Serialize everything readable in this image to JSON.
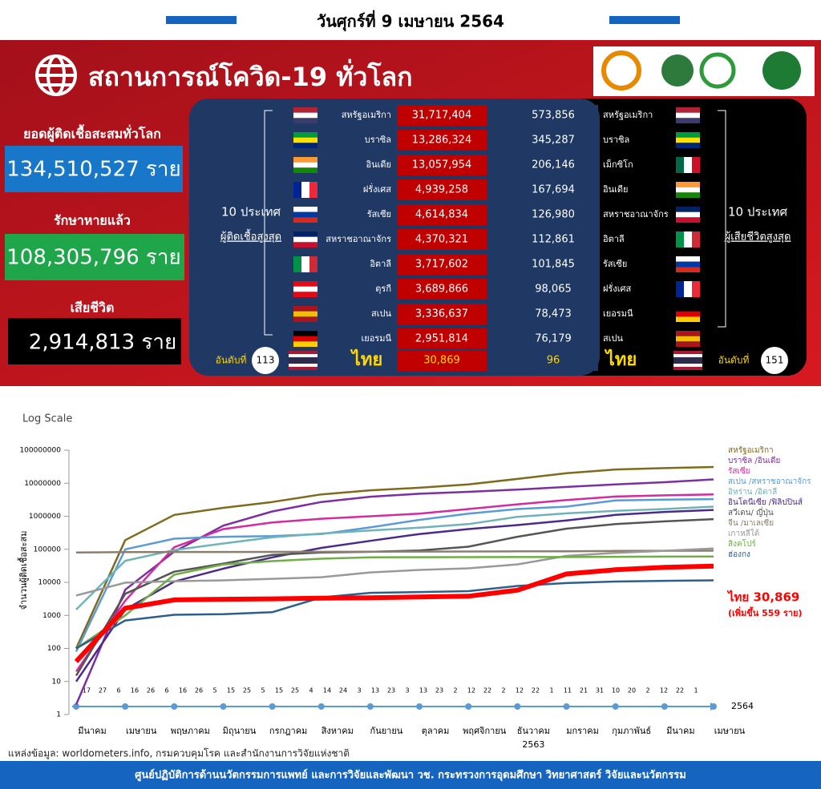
{
  "header": {
    "date": "วันศุกร์ที่ 9 เมษายน 2564"
  },
  "title": "สถานการณ์โควิด-19 ทั่วโลก",
  "stats": [
    {
      "label": "ยอดผู้ติดเชื้อสะสมทั่วโลก",
      "value": "134,510,527 ราย"
    },
    {
      "label": "รักษาหายแล้ว",
      "value": "108,305,796 ราย"
    },
    {
      "label": "เสียชีวิต",
      "value": "2,914,813 ราย"
    }
  ],
  "cases_top10": {
    "heading": "10 ประเทศ",
    "subheading": "ผู้ติดเชื้อสูงสุด",
    "rows": [
      {
        "country": "สหรัฐอเมริกา",
        "value": "31,717,404"
      },
      {
        "country": "บราซิล",
        "value": "13,286,324"
      },
      {
        "country": "อินเดีย",
        "value": "13,057,954"
      },
      {
        "country": "ฝรั่งเศส",
        "value": "4,939,258"
      },
      {
        "country": "รัสเซีย",
        "value": "4,614,834"
      },
      {
        "country": "สหราชอาณาจักร",
        "value": "4,370,321"
      },
      {
        "country": "อิตาลี",
        "value": "3,717,602"
      },
      {
        "country": "ตุรกี",
        "value": "3,689,866"
      },
      {
        "country": "สเปน",
        "value": "3,336,637"
      },
      {
        "country": "เยอรมนี",
        "value": "2,951,814"
      }
    ],
    "thailand": {
      "rank_label": "อันดับที่",
      "rank": 113,
      "country": "ไทย",
      "value": "30,869"
    }
  },
  "deaths_top10": {
    "heading": "10 ประเทศ",
    "subheading": "ผู้เสียชีวิตสูงสุด",
    "rows": [
      {
        "country": "สหรัฐอเมริกา",
        "value": "573,856"
      },
      {
        "country": "บราซิล",
        "value": "345,287"
      },
      {
        "country": "เม็กซิโก",
        "value": "206,146"
      },
      {
        "country": "อินเดีย",
        "value": "167,694"
      },
      {
        "country": "สหราชอาณาจักร",
        "value": "126,980"
      },
      {
        "country": "อิตาลี",
        "value": "112,861"
      },
      {
        "country": "รัสเซีย",
        "value": "101,845"
      },
      {
        "country": "ฝรั่งเศส",
        "value": "98,065"
      },
      {
        "country": "เยอรมนี",
        "value": "78,473"
      },
      {
        "country": "สเปน",
        "value": "76,179"
      }
    ],
    "thailand": {
      "rank_label": "อันดับที่",
      "rank": 151,
      "country": "ไทย",
      "value": "96"
    }
  },
  "chart_data": {
    "type": "line",
    "subtitle": "Log Scale",
    "y_label": "จำนวนผู้ติดเชื้อสะสม",
    "log_scale": true,
    "categories": [
      "มีนาคม",
      "เมษายน",
      "พฤษภาคม",
      "มิถุนายน",
      "กรกฎาคม",
      "สิงหาคม",
      "กันยายน",
      "ตุลาคม",
      "พฤศจิกายน",
      "ธันวาคม",
      "มกราคม",
      "กุมภาพันธ์",
      "มีนาคม",
      "เมษายน"
    ],
    "x_day_labels": [
      "17",
      "27",
      "6",
      "16",
      "26",
      "6",
      "16",
      "26",
      "5",
      "15",
      "25",
      "5",
      "15",
      "25",
      "4",
      "14",
      "24",
      "3",
      "13",
      "23",
      "3",
      "13",
      "23",
      "2",
      "12",
      "22",
      "2",
      "12",
      "22",
      "1",
      "11",
      "21",
      "31",
      "10",
      "20",
      "2",
      "12",
      "22",
      "1"
    ],
    "year_labels": [
      "2563",
      "2564"
    ],
    "ylim": [
      1,
      100000000
    ],
    "yticks": [
      1,
      10,
      100,
      1000,
      10000,
      100000,
      1000000,
      10000000,
      100000000
    ],
    "series": [
      {
        "name": "สหรัฐอเมริกา",
        "color": "#7f6a1e",
        "values": [
          100,
          190000,
          1100000,
          1800000,
          2700000,
          4600000,
          6100000,
          7300000,
          9200000,
          13500000,
          20000000,
          26000000,
          28700000,
          31000000
        ]
      },
      {
        "name": "บราซิล /อินเดีย",
        "color": "#7b2fa0",
        "values": [
          2,
          6000,
          85000,
          520000,
          1400000,
          2700000,
          3900000,
          4800000,
          5500000,
          6400000,
          7700000,
          9200000,
          10700000,
          13000000
        ]
      },
      {
        "name": "รัสเซีย",
        "color": "#d22ca0",
        "values": [
          20,
          2800,
          115000,
          410000,
          650000,
          840000,
          1000000,
          1200000,
          1650000,
          2300000,
          3100000,
          3950000,
          4300000,
          4600000
        ]
      },
      {
        "name": "สเปน /สหราชอาณาจักร",
        "color": "#5b9bd5",
        "values": [
          80,
          100000,
          210000,
          240000,
          250000,
          290000,
          460000,
          780000,
          1200000,
          1650000,
          1950000,
          3000000,
          3200000,
          3300000
        ]
      },
      {
        "name": "อิหร่าน /อิตาลี",
        "color": "#6fb3b8",
        "values": [
          1500,
          45000,
          95000,
          150000,
          230000,
          300000,
          370000,
          450000,
          580000,
          960000,
          1220000,
          1450000,
          1650000,
          1950000
        ]
      },
      {
        "name": "อินโดนีเซีย /ฟิลิปปินส์",
        "color": "#4b2a8a",
        "values": [
          10,
          1500,
          10500,
          26000,
          57000,
          110000,
          180000,
          290000,
          410000,
          540000,
          750000,
          1100000,
          1350000,
          1550000
        ]
      },
      {
        "name": "สวีเดน/ ญี่ปุ่น",
        "color": "#555555",
        "values": [
          15,
          4500,
          21000,
          37000,
          68000,
          80000,
          84000,
          92000,
          120000,
          240000,
          420000,
          580000,
          700000,
          820000
        ]
      },
      {
        "name": "จีน /มาเลเซีย",
        "color": "#8c7e6e",
        "values": [
          80000,
          82000,
          83000,
          83000,
          83500,
          84000,
          85000,
          85400,
          86000,
          86500,
          87000,
          89000,
          90000,
          90500
        ]
      },
      {
        "name": "เกาหลีใต้",
        "color": "#999999",
        "values": [
          4000,
          9800,
          10800,
          11500,
          12800,
          14300,
          20000,
          23800,
          26500,
          35000,
          63000,
          78000,
          90000,
          106000
        ]
      },
      {
        "name": "สิงคโปร์",
        "color": "#70ad47",
        "values": [
          100,
          1000,
          17000,
          35000,
          44000,
          52000,
          57000,
          57800,
          58000,
          58200,
          58500,
          59500,
          60000,
          60500
        ]
      },
      {
        "name": "ฮ่องกง",
        "color": "#2e5f8a",
        "values": [
          100,
          700,
          1040,
          1090,
          1250,
          3500,
          4800,
          5100,
          5400,
          7800,
          9500,
          10600,
          11100,
          11500
        ]
      },
      {
        "name": "ไทย 30,869",
        "color": "#ff0000",
        "values": [
          40,
          1650,
          2950,
          3080,
          3170,
          3320,
          3410,
          3600,
          3800,
          5800,
          18000,
          24000,
          28500,
          30869
        ]
      }
    ],
    "annotation": "(เพิ่มขึ้น 559 ราย)"
  },
  "source": "แหล่งข้อมูล: worldometers.info, กรมควบคุมโรค และสำนักงานการวิจัยแห่งชาติ",
  "footer": "ศูนย์ปฏิบัติการด้านนวัตกรรมการแพทย์ และการวิจัยและพัฒนา  วช.  กระทรวงการอุดมศึกษา วิทยาศาสตร์ วิจัยและนวัตกรรม"
}
